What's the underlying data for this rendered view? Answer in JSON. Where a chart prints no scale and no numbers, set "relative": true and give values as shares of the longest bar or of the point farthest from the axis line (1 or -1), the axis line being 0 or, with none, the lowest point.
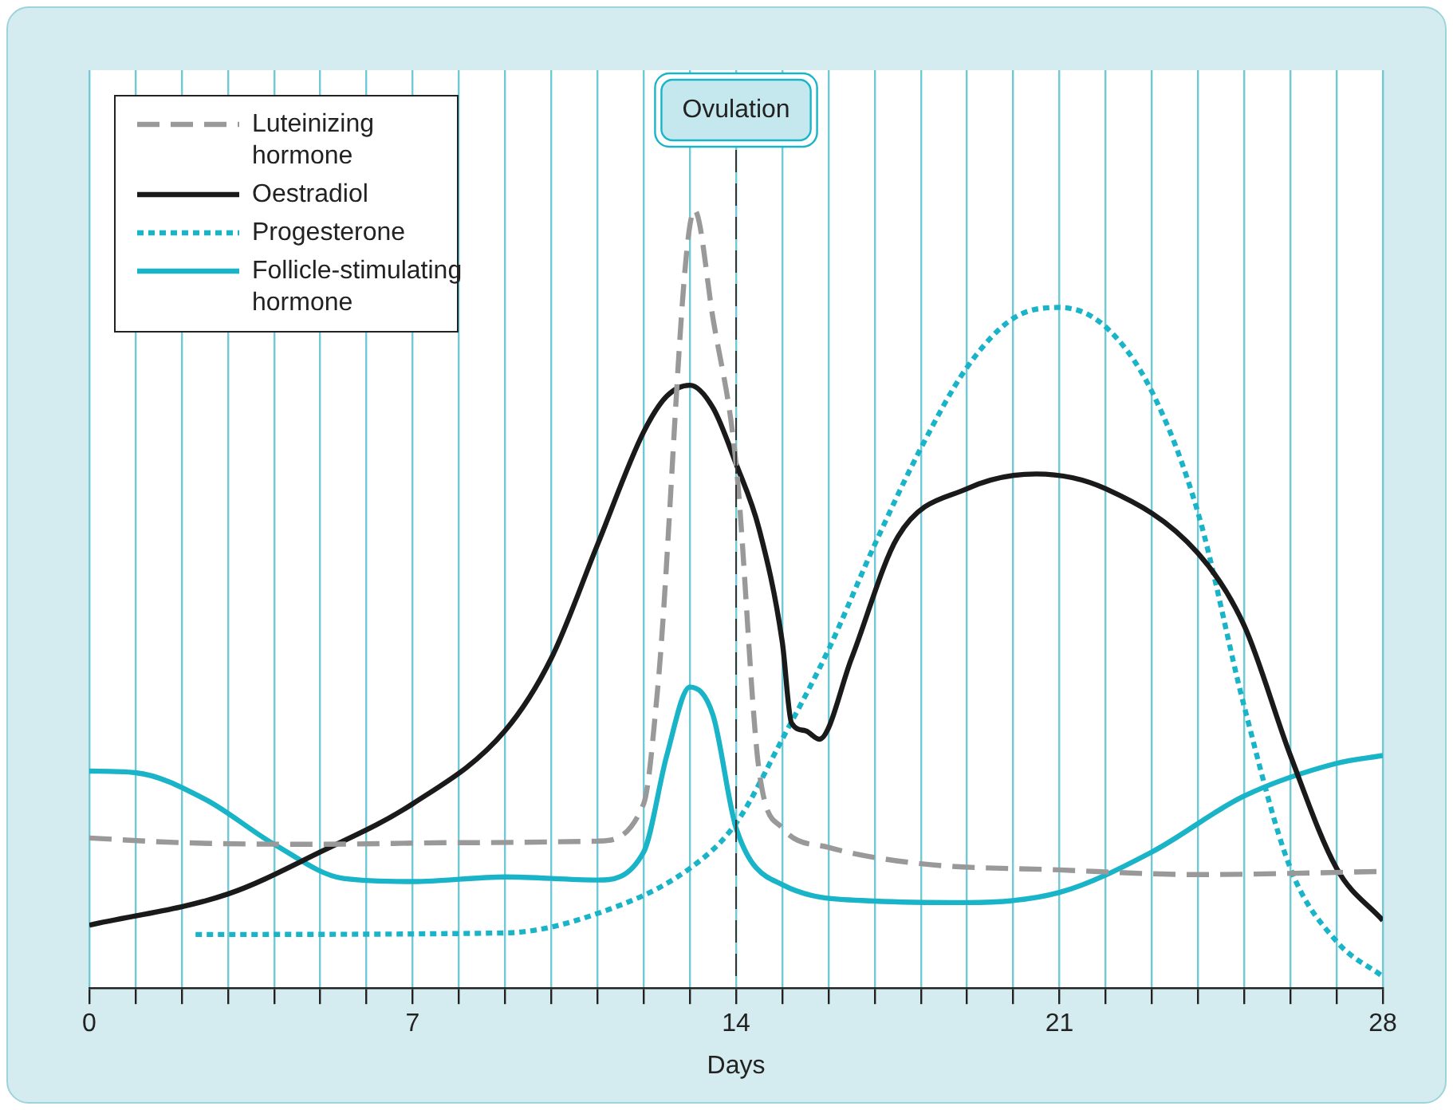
{
  "chart_data": {
    "type": "line",
    "relative": true,
    "xlabel": "Days",
    "xlim": [
      0,
      28
    ],
    "xticks": [
      0,
      {
        "value": 1,
        "label": null
      },
      {
        "value": 2,
        "label": null
      },
      {
        "value": 3,
        "label": null
      },
      {
        "value": 4,
        "label": null
      },
      {
        "value": 5,
        "label": null
      },
      {
        "value": 6,
        "label": null
      },
      7,
      {
        "value": 8,
        "label": null
      },
      {
        "value": 9,
        "label": null
      },
      {
        "value": 10,
        "label": null
      },
      {
        "value": 11,
        "label": null
      },
      {
        "value": 12,
        "label": null
      },
      {
        "value": 13,
        "label": null
      },
      14,
      {
        "value": 15,
        "label": null
      },
      {
        "value": 16,
        "label": null
      },
      {
        "value": 17,
        "label": null
      },
      {
        "value": 18,
        "label": null
      },
      {
        "value": 19,
        "label": null
      },
      {
        "value": 20,
        "label": null
      },
      21,
      {
        "value": 22,
        "label": null
      },
      {
        "value": 23,
        "label": null
      },
      {
        "value": 24,
        "label": null
      },
      {
        "value": 25,
        "label": null
      },
      {
        "value": 26,
        "label": null
      },
      {
        "value": 27,
        "label": null
      },
      28
    ],
    "grid": "x",
    "legend": "top left",
    "marker": "none",
    "ref_lines": [
      {
        "axis": "x",
        "value": 14,
        "label": "Ovulation",
        "line_style": "dashed",
        "color": "#333333"
      }
    ],
    "series": [
      {
        "name": "Luteinizing hormone",
        "color": "#999999",
        "line_style": "dashed",
        "x": [
          0,
          2,
          5,
          8,
          11,
          12,
          12.3,
          13.1,
          13.5,
          14,
          14.5,
          15,
          16,
          18,
          21,
          24,
          28
        ],
        "values": [
          0.193,
          0.187,
          0.185,
          0.187,
          0.189,
          0.237,
          0.383,
          1,
          0.861,
          0.674,
          0.279,
          0.206,
          0.181,
          0.16,
          0.152,
          0.146,
          0.15
        ]
      },
      {
        "name": "Oestradiol",
        "color": "#1a1a1a",
        "line_style": "solid",
        "x": [
          0,
          3,
          5,
          7,
          9,
          10,
          11,
          12,
          12.5,
          13,
          13.5,
          14,
          14.5,
          15,
          15.2,
          15.5,
          15.8,
          16.5,
          17.5,
          19,
          20.5,
          22,
          24,
          25,
          26,
          27,
          28
        ],
        "values": [
          0.081,
          0.121,
          0.175,
          0.237,
          0.331,
          0.424,
          0.57,
          0.715,
          0.761,
          0.775,
          0.746,
          0.674,
          0.59,
          0.445,
          0.341,
          0.331,
          0.32,
          0.424,
          0.58,
          0.642,
          0.661,
          0.642,
          0.559,
          0.466,
          0.299,
          0.154,
          0.087
        ]
      },
      {
        "name": "Progesterone",
        "color": "#19b4c8",
        "line_style": "dotted",
        "x": [
          2.3,
          9,
          11,
          13,
          14,
          15,
          16,
          17,
          18,
          19,
          20,
          21,
          22,
          23,
          24,
          25,
          26,
          27,
          28
        ],
        "values": [
          0.069,
          0.071,
          0.096,
          0.154,
          0.212,
          0.32,
          0.435,
          0.57,
          0.694,
          0.798,
          0.861,
          0.875,
          0.85,
          0.767,
          0.611,
          0.362,
          0.154,
          0.06,
          0.015
        ]
      },
      {
        "name": "Follicle-stimulating hormone",
        "color": "#19b4c8",
        "line_style": "solid",
        "x": [
          0,
          1,
          2.5,
          4,
          5.5,
          7,
          9,
          11,
          12,
          12.5,
          13,
          13.5,
          14,
          15,
          17,
          19,
          21,
          23,
          25,
          27,
          28
        ],
        "values": [
          0.279,
          0.277,
          0.243,
          0.185,
          0.141,
          0.137,
          0.143,
          0.139,
          0.175,
          0.299,
          0.387,
          0.351,
          0.206,
          0.133,
          0.112,
          0.11,
          0.123,
          0.175,
          0.247,
          0.289,
          0.299
        ]
      }
    ]
  }
}
